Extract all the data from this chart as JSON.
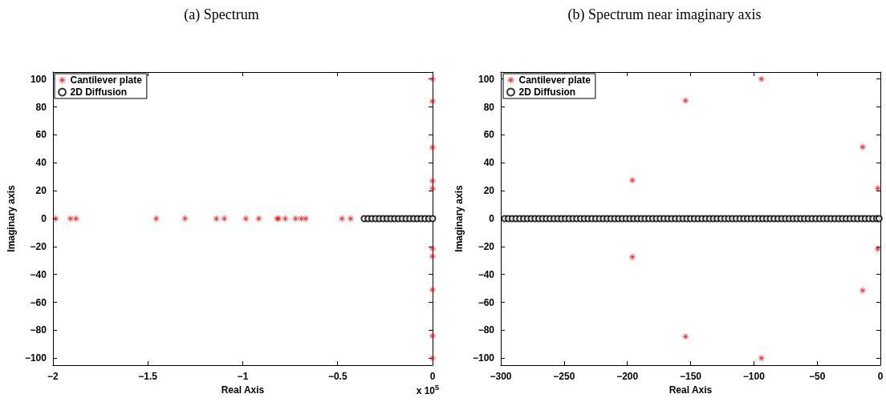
{
  "chart_data": [
    {
      "type": "scatter",
      "title": "(a) Spectrum",
      "xlabel": "Real Axis",
      "ylabel": "Imaginary axis",
      "annotations": [
        "x 10$^{5}$"
      ],
      "xlim": [
        -2,
        0
      ],
      "xticks": [
        -2,
        -1.5,
        -1,
        -0.5,
        0
      ],
      "ylim": [
        -105,
        105
      ],
      "yticks": [
        -100,
        -80,
        -60,
        -40,
        -20,
        0,
        20,
        40,
        60,
        80,
        100
      ],
      "grid": false,
      "legend": "top left",
      "series": [
        {
          "name": "Cantilever plate",
          "color": "#ff0000",
          "marker": "star",
          "x": [
            -1.986,
            -1.908,
            -1.878,
            -1.456,
            -1.304,
            -1.139,
            -1.097,
            -0.984,
            -0.916,
            -0.819,
            -0.811,
            -0.776,
            -0.722,
            -0.692,
            -0.668,
            -0.477,
            -0.432,
            0,
            0,
            0,
            0,
            0,
            0,
            0,
            0,
            0,
            0
          ],
          "values": [
            0,
            0,
            0,
            0,
            0,
            0,
            0,
            0,
            0,
            0,
            0,
            0,
            0,
            0,
            0,
            0,
            0,
            100,
            84,
            51,
            27,
            21.5,
            -21.5,
            -27,
            -51,
            -84,
            -100
          ]
        },
        {
          "name": "2D Diffusion",
          "color": "#000000",
          "marker": "circle",
          "x": [
            -0.36,
            -0.34,
            -0.32,
            -0.3,
            -0.28,
            -0.26,
            -0.24,
            -0.22,
            -0.2,
            -0.18,
            -0.16,
            -0.14,
            -0.12,
            -0.1,
            -0.08,
            -0.06,
            -0.04,
            -0.02,
            0
          ],
          "values": [
            0,
            0,
            0,
            0,
            0,
            0,
            0,
            0,
            0,
            0,
            0,
            0,
            0,
            0,
            0,
            0,
            0,
            0,
            0
          ]
        }
      ]
    },
    {
      "type": "scatter",
      "title": "(b) Spectrum near imaginary axis",
      "xlabel": "Real Axis",
      "ylabel": "Imaginary axis",
      "xlim": [
        -300,
        0
      ],
      "xticks": [
        -300,
        -250,
        -200,
        -150,
        -100,
        -50,
        0
      ],
      "ylim": [
        -105,
        105
      ],
      "yticks": [
        -100,
        -80,
        -60,
        -40,
        -20,
        0,
        20,
        40,
        60,
        80,
        100
      ],
      "grid": false,
      "legend": "top left",
      "series": [
        {
          "name": "Cantilever plate",
          "color": "#ff0000",
          "marker": "star",
          "x": [
            -94,
            -94,
            -154,
            -154,
            -196,
            -196,
            -14,
            -14,
            -2,
            -2
          ],
          "values": [
            100,
            -100,
            84.5,
            -84.5,
            27.5,
            -27.5,
            51.3,
            -51.5,
            21.7,
            -21.7
          ]
        },
        {
          "name": "2D Diffusion",
          "color": "#000000",
          "marker": "circle",
          "x": [
            -297,
            -294,
            -291,
            -288,
            -285,
            -282,
            -279,
            -276,
            -273,
            -270,
            -267,
            -264,
            -261,
            -258,
            -255,
            -252,
            -249,
            -246,
            -243,
            -240,
            -237,
            -234,
            -231,
            -228,
            -225,
            -222,
            -219,
            -216,
            -213,
            -210,
            -207,
            -204,
            -201,
            -198,
            -195,
            -192,
            -189,
            -186,
            -183,
            -180,
            -177,
            -174,
            -171,
            -168,
            -165,
            -162,
            -159,
            -156,
            -153,
            -150,
            -147,
            -144,
            -141,
            -138,
            -135,
            -132,
            -129,
            -126,
            -123,
            -120,
            -117,
            -114,
            -111,
            -108,
            -105,
            -102,
            -99,
            -96,
            -93,
            -90,
            -87,
            -84,
            -81,
            -78,
            -75,
            -72,
            -69,
            -66,
            -63,
            -60,
            -57,
            -54,
            -51,
            -48,
            -45,
            -42,
            -39,
            -36,
            -33,
            -30,
            -27,
            -24,
            -21,
            -18,
            -15,
            -12,
            -9,
            -6,
            -3,
            -1
          ],
          "values": [
            0,
            0,
            0,
            0,
            0,
            0,
            0,
            0,
            0,
            0,
            0,
            0,
            0,
            0,
            0,
            0,
            0,
            0,
            0,
            0,
            0,
            0,
            0,
            0,
            0,
            0,
            0,
            0,
            0,
            0,
            0,
            0,
            0,
            0,
            0,
            0,
            0,
            0,
            0,
            0,
            0,
            0,
            0,
            0,
            0,
            0,
            0,
            0,
            0,
            0,
            0,
            0,
            0,
            0,
            0,
            0,
            0,
            0,
            0,
            0,
            0,
            0,
            0,
            0,
            0,
            0,
            0,
            0,
            0,
            0,
            0,
            0,
            0,
            0,
            0,
            0,
            0,
            0,
            0,
            0,
            0,
            0,
            0,
            0,
            0,
            0,
            0,
            0,
            0,
            0,
            0,
            0,
            0,
            0,
            0,
            0,
            0,
            0,
            0,
            0
          ]
        }
      ]
    }
  ]
}
